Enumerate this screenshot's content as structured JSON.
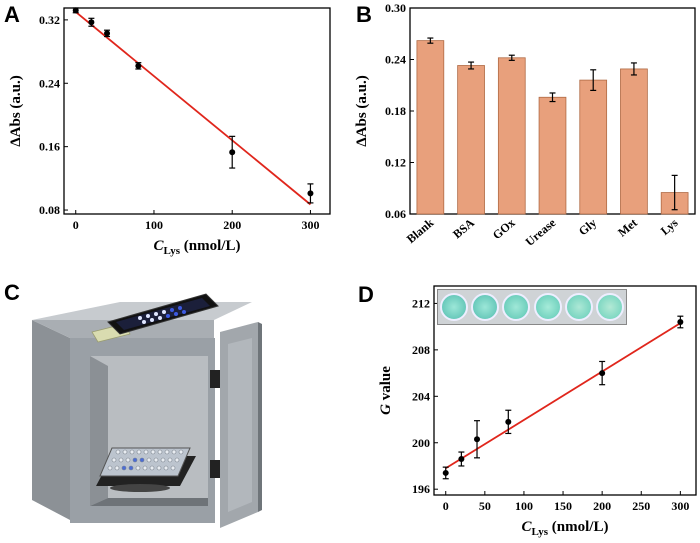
{
  "panels": {
    "a": "A",
    "b": "B",
    "c": "C",
    "d": "D"
  },
  "chart_data": [
    {
      "id": "A",
      "type": "scatter",
      "ylabel": "ΔAbs (a.u.)",
      "xlabel": {
        "italic": "C",
        "sub": "Lys",
        "rest": " (nmol/L)"
      },
      "xlim": [
        -15,
        325
      ],
      "ylim": [
        0.075,
        0.335
      ],
      "xticks": [
        0,
        100,
        200,
        300
      ],
      "yticks": [
        0.08,
        0.16,
        0.24,
        0.32
      ],
      "x": [
        0,
        20,
        40,
        80,
        200,
        300
      ],
      "y": [
        0.332,
        0.317,
        0.303,
        0.262,
        0.153,
        0.101
      ],
      "err": [
        0.003,
        0.005,
        0.004,
        0.004,
        0.02,
        0.012
      ],
      "fit": {
        "x": [
          0,
          300
        ],
        "y": [
          0.33,
          0.087
        ],
        "color": "#e0261c"
      }
    },
    {
      "id": "B",
      "type": "bar",
      "ylabel": "ΔAbs (a.u.)",
      "categories": [
        "Blank",
        "BSA",
        "GOx",
        "Urease",
        "Gly",
        "Met",
        "Lys"
      ],
      "values": [
        0.262,
        0.233,
        0.242,
        0.196,
        0.216,
        0.229,
        0.085
      ],
      "err": [
        0.003,
        0.004,
        0.003,
        0.005,
        0.012,
        0.007,
        0.02
      ],
      "ylim": [
        0.06,
        0.3
      ],
      "yticks": [
        0.06,
        0.12,
        0.18,
        0.24,
        0.3
      ],
      "bar_color": "#e8a07c"
    },
    {
      "id": "D",
      "type": "scatter",
      "ylabel": {
        "italic": "G",
        "rest": " value"
      },
      "xlabel": {
        "italic": "C",
        "sub": "Lys",
        "rest": " (nmol/L)"
      },
      "xlim": [
        -15,
        320
      ],
      "ylim": [
        195.5,
        213.5
      ],
      "xticks": [
        0,
        50,
        100,
        150,
        200,
        250,
        300
      ],
      "yticks": [
        196,
        200,
        204,
        208,
        212
      ],
      "x": [
        0,
        20,
        40,
        80,
        200,
        300
      ],
      "y": [
        197.4,
        198.6,
        200.3,
        201.8,
        206.0,
        210.4
      ],
      "err": [
        0.5,
        0.6,
        1.6,
        1.0,
        1.0,
        0.5
      ],
      "fit": {
        "x": [
          0,
          300
        ],
        "y": [
          197.8,
          210.3
        ],
        "color": "#e0261c"
      }
    }
  ],
  "illustration": {
    "name": "portable detection box with smartphone and well plate"
  },
  "inset": {
    "name": "six well colorimetric strip",
    "wells": 6
  }
}
